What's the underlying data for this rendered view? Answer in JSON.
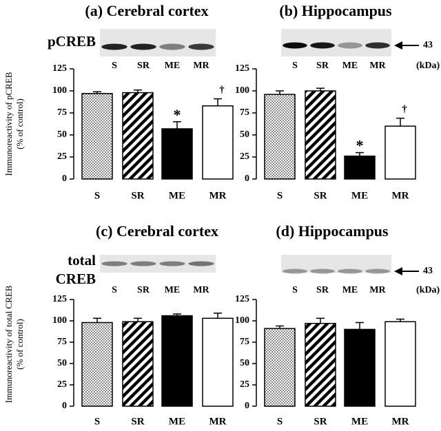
{
  "chart_data": [
    {
      "type": "bar",
      "title": "(a) Cerebral cortex",
      "ylabel": [
        "Immunoreactivity of pCREB",
        "(% of control)"
      ],
      "blot": {
        "label": [
          "pCREB"
        ],
        "lanes": [
          "S",
          "SR",
          "ME",
          "MR"
        ]
      },
      "categories": [
        "S",
        "SR",
        "ME",
        "MR"
      ],
      "values": [
        97,
        98,
        57,
        83
      ],
      "errors": [
        2,
        3,
        8,
        8
      ],
      "bar_styles": [
        "dots",
        "stripes",
        "black",
        "white"
      ],
      "annotations": [
        {
          "category": "ME",
          "text": "*"
        },
        {
          "category": "MR",
          "text": "†"
        }
      ],
      "ylim": [
        0,
        125
      ],
      "yticks": [
        0,
        25,
        50,
        75,
        100,
        125
      ]
    },
    {
      "type": "bar",
      "title": "(b) Hippocampus",
      "blot": {
        "lanes": [
          "S",
          "SR",
          "ME",
          "MR"
        ],
        "marker": "43",
        "unit": "(kDa)"
      },
      "categories": [
        "S",
        "SR",
        "ME",
        "MR"
      ],
      "values": [
        96,
        100,
        26,
        60
      ],
      "errors": [
        4,
        3,
        4,
        9
      ],
      "bar_styles": [
        "dots",
        "stripes",
        "black",
        "white"
      ],
      "annotations": [
        {
          "category": "ME",
          "text": "*"
        },
        {
          "category": "MR",
          "text": "†"
        }
      ],
      "ylim": [
        0,
        125
      ],
      "yticks": [
        0,
        25,
        50,
        75,
        100,
        125
      ]
    },
    {
      "type": "bar",
      "title": "(c) Cerebral cortex",
      "ylabel": [
        "Immunoreactivity of total CREB",
        "(% of control)"
      ],
      "blot": {
        "label": [
          "total",
          "CREB"
        ],
        "lanes": [
          "S",
          "SR",
          "ME",
          "MR"
        ]
      },
      "categories": [
        "S",
        "SR",
        "ME",
        "MR"
      ],
      "values": [
        98,
        99,
        106,
        103
      ],
      "errors": [
        5,
        4,
        2,
        6
      ],
      "bar_styles": [
        "dots",
        "stripes",
        "black",
        "white"
      ],
      "ylim": [
        0,
        125
      ],
      "yticks": [
        0,
        25,
        50,
        75,
        100,
        125
      ]
    },
    {
      "type": "bar",
      "title": "(d) Hippocampus",
      "blot": {
        "lanes": [
          "S",
          "SR",
          "ME",
          "MR"
        ],
        "marker": "43",
        "unit": "(kDa)"
      },
      "categories": [
        "S",
        "SR",
        "ME",
        "MR"
      ],
      "values": [
        91,
        97,
        90,
        99
      ],
      "errors": [
        3,
        6,
        8,
        3
      ],
      "bar_styles": [
        "dots",
        "stripes",
        "black",
        "white"
      ],
      "ylim": [
        0,
        125
      ],
      "yticks": [
        0,
        25,
        50,
        75,
        100,
        125
      ]
    }
  ]
}
